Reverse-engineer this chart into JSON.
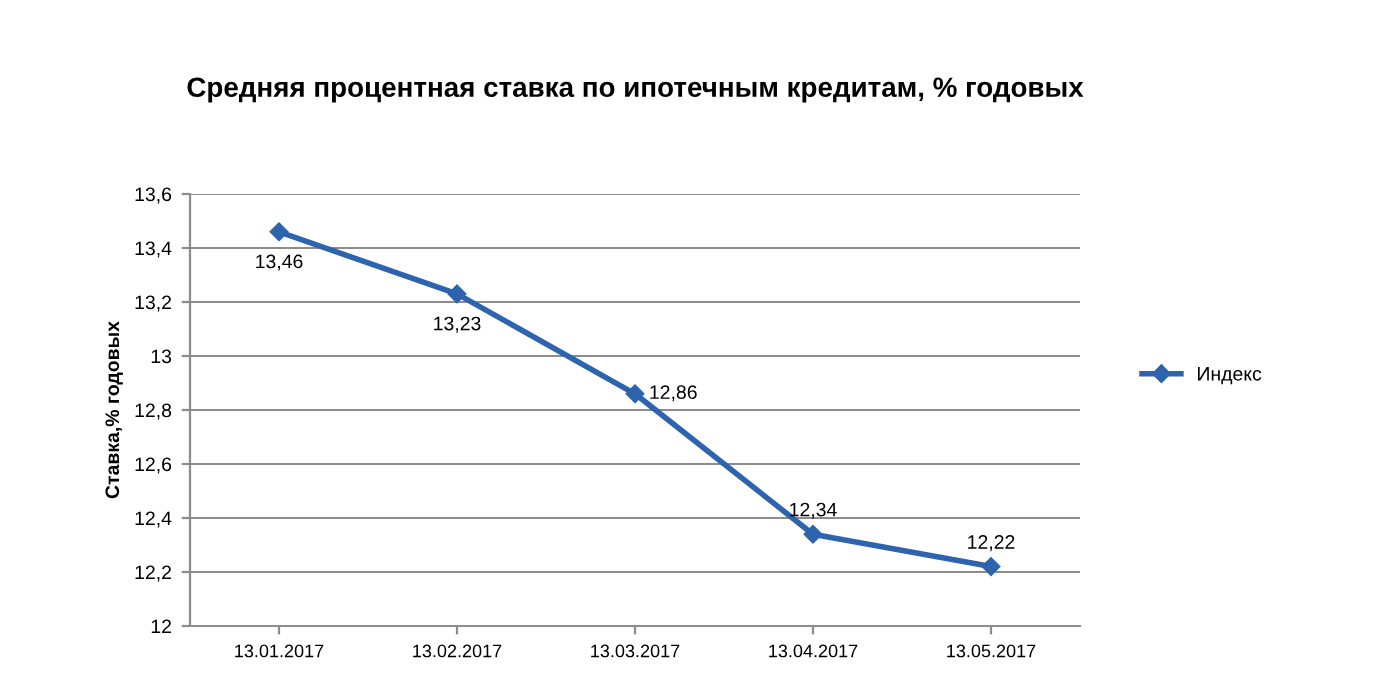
{
  "chart_data": {
    "type": "line",
    "title": "Средняя процентная ставка по ипотечным кредитам, % годовых",
    "ylabel": "Ставка,% годовых",
    "categories": [
      "13.01.2017",
      "13.02.2017",
      "13.03.2017",
      "13.04.2017",
      "13.05.2017"
    ],
    "series": [
      {
        "name": "Индекс",
        "color": "#2e63ad",
        "values": [
          13.46,
          13.23,
          12.86,
          12.34,
          12.22
        ],
        "value_labels": [
          "13,46",
          "13,23",
          "12,86",
          "12,34",
          "12,22"
        ]
      }
    ],
    "ylim": [
      12,
      13.6
    ],
    "yticks": [
      {
        "value": 12,
        "label": "12"
      },
      {
        "value": 12.2,
        "label": "12,2"
      },
      {
        "value": 12.4,
        "label": "12,4"
      },
      {
        "value": 12.6,
        "label": "12,6"
      },
      {
        "value": 12.8,
        "label": "12,8"
      },
      {
        "value": 13,
        "label": "13"
      },
      {
        "value": 13.2,
        "label": "13,2"
      },
      {
        "value": 13.4,
        "label": "13,4"
      },
      {
        "value": 13.6,
        "label": "13,6"
      }
    ],
    "grid": "y",
    "legend": "right",
    "marker": "diamond",
    "line_style": "solid"
  }
}
